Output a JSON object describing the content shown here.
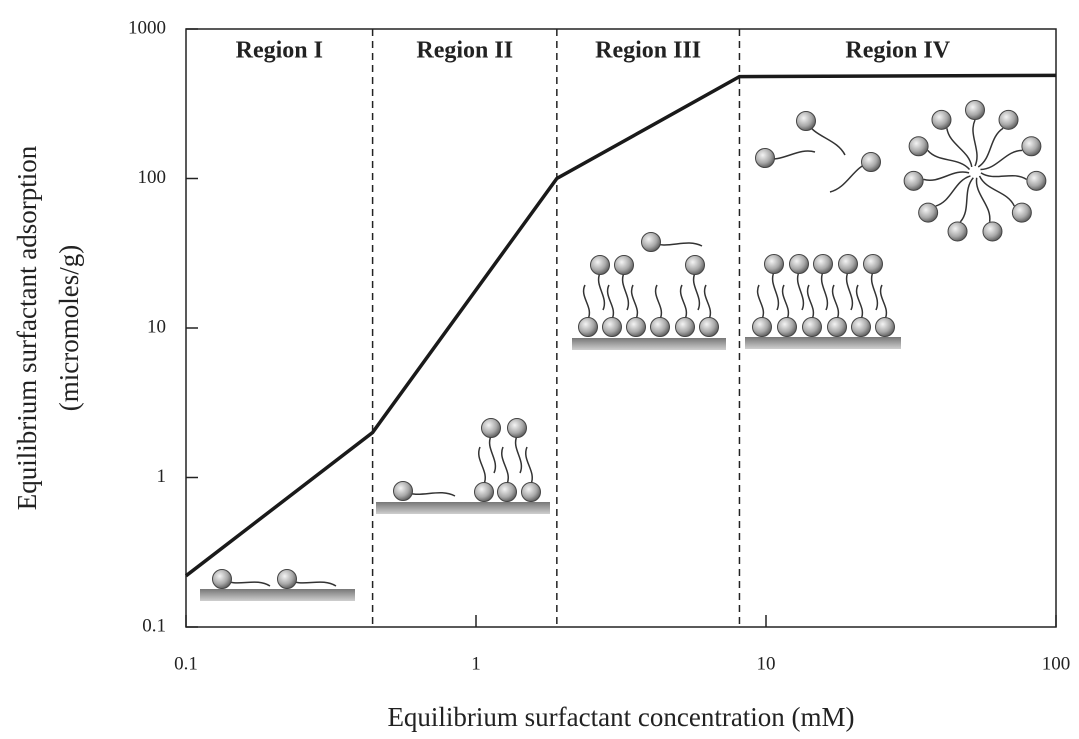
{
  "chart_data": {
    "type": "line",
    "title": null,
    "xlabel": "Equilibrium surfactant concentration (mM)",
    "ylabel": [
      "Equilibrium surfactant adsorption",
      "(micromoles/g)"
    ],
    "x": [
      0.1,
      0.44,
      1.9,
      8.1,
      100
    ],
    "series": [
      {
        "name": null,
        "color": "#1a1a1a",
        "values": [
          0.22,
          2,
          100,
          480,
          490
        ]
      }
    ],
    "xlog": true,
    "ylog": true,
    "xlim": [
      0.1,
      100
    ],
    "ylim": [
      0.1,
      1000
    ],
    "xticks": [
      0.1,
      1,
      10,
      100
    ],
    "yticks": [
      0.1,
      1,
      10,
      100,
      1000
    ],
    "region_boundaries": [
      0.44,
      1.9,
      8.1
    ],
    "region_labels": [
      "Region I",
      "Region II",
      "Region III",
      "Region IV"
    ]
  }
}
